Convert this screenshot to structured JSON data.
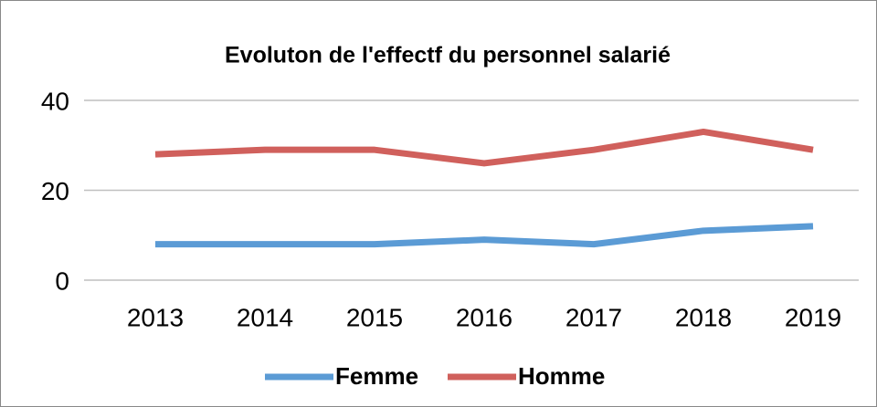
{
  "chart_data": {
    "type": "line",
    "title": "Evoluton de l'effectf du personnel salarié",
    "categories": [
      "2013",
      "2014",
      "2015",
      "2016",
      "2017",
      "2018",
      "2019"
    ],
    "series": [
      {
        "name": "Femme",
        "color": "#5b9bd5",
        "values": [
          8,
          8,
          8,
          9,
          8,
          11,
          12
        ]
      },
      {
        "name": "Homme",
        "color": "#d0605c",
        "values": [
          28,
          29,
          29,
          26,
          29,
          33,
          29
        ]
      }
    ],
    "ylim": [
      0,
      40
    ],
    "yticks": [
      0,
      20,
      40
    ],
    "grid": true,
    "legend": "bottom"
  }
}
